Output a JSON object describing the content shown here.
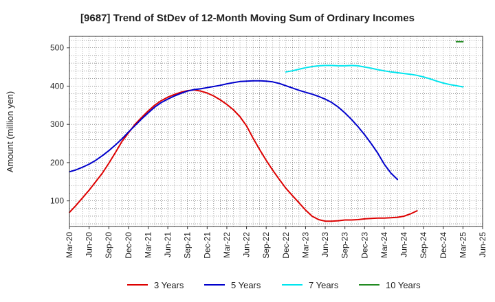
{
  "chart_data": {
    "type": "line",
    "title": "[9687]  Trend of StDev of 12-Month Moving Sum of Ordinary Incomes",
    "xlabel": "",
    "ylabel": "Amount (million yen)",
    "ylim": [
      33,
      530
    ],
    "yticks": [
      100,
      200,
      300,
      400,
      500
    ],
    "x_tick_labels": [
      "Mar-20",
      "Jun-20",
      "Sep-20",
      "Dec-20",
      "Mar-21",
      "Jun-21",
      "Sep-21",
      "Dec-21",
      "Mar-22",
      "Jun-22",
      "Sep-22",
      "Dec-22",
      "Mar-23",
      "Jun-23",
      "Sep-23",
      "Dec-23",
      "Mar-24",
      "Jun-24",
      "Sep-24",
      "Dec-24",
      "Mar-25",
      "Jun-25"
    ],
    "x_range_months": [
      0,
      63
    ],
    "grid": true,
    "legend_position": "bottom",
    "series": [
      {
        "name": "3 Years",
        "color": "#dd0000",
        "months": [
          0,
          1,
          2,
          3,
          4,
          5,
          6,
          7,
          8,
          9,
          10,
          11,
          12,
          13,
          14,
          15,
          16,
          17,
          18,
          19,
          20,
          21,
          22,
          23,
          24,
          25,
          26,
          27,
          28,
          29,
          30,
          31,
          32,
          33,
          34,
          35,
          36,
          37,
          38,
          39,
          40,
          41,
          42,
          43,
          44,
          45,
          46,
          47,
          48,
          49,
          50,
          51,
          52,
          53,
          54,
          55,
          56,
          57,
          58,
          59,
          60
        ],
        "values": [
          70,
          88,
          108,
          128,
          150,
          172,
          198,
          226,
          255,
          278,
          300,
          318,
          335,
          350,
          362,
          371,
          378,
          384,
          388,
          390,
          387,
          382,
          374,
          364,
          352,
          338,
          320,
          296,
          264,
          234,
          206,
          180,
          156,
          133,
          114,
          95,
          76,
          60,
          51,
          47,
          47,
          48,
          50,
          50,
          51,
          53,
          54,
          55,
          55,
          56,
          57,
          60,
          66,
          74,
          null,
          null,
          null,
          null,
          null,
          null,
          null
        ],
        "months_note": "values indexed by month offset from Mar-20"
      },
      {
        "name": "5 Years",
        "color": "#0000cc",
        "months": [
          0,
          60
        ],
        "values": [
          176,
          181,
          188,
          196,
          206,
          218,
          231,
          246,
          262,
          280,
          297,
          314,
          330,
          345,
          357,
          366,
          374,
          381,
          387,
          391,
          393,
          396,
          399,
          402,
          406,
          409,
          412,
          413,
          414,
          414,
          413,
          411,
          407,
          401,
          395,
          389,
          384,
          379,
          373,
          366,
          357,
          345,
          330,
          313,
          294,
          273,
          250,
          225,
          196,
          173,
          156,
          null,
          null,
          null,
          null,
          null,
          null,
          null,
          null,
          null,
          null
        ]
      },
      {
        "name": "7 Years",
        "color": "#00e5ee",
        "values": [
          null,
          null,
          null,
          null,
          null,
          null,
          null,
          null,
          null,
          null,
          null,
          null,
          null,
          null,
          null,
          null,
          null,
          null,
          null,
          null,
          null,
          null,
          null,
          null,
          null,
          null,
          null,
          null,
          null,
          null,
          null,
          null,
          null,
          null,
          null,
          null,
          null,
          null,
          null,
          null,
          null,
          null,
          null,
          null,
          null,
          null,
          null,
          null,
          null,
          null,
          null,
          null,
          null,
          null,
          null,
          null,
          null,
          null,
          null,
          null,
          null
        ]
      },
      {
        "name": "10 Years",
        "color": "#228b22",
        "values": []
      }
    ]
  }
}
